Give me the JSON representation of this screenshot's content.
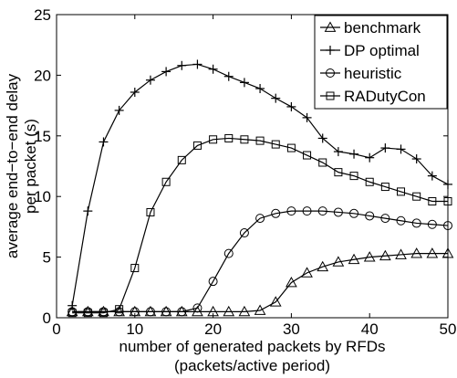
{
  "chart_data": {
    "type": "line",
    "xlabel": [
      "number of generated packets by RFDs",
      "(packets/active period)"
    ],
    "ylabel": [
      "average end−to−end delay",
      "per packet (s)"
    ],
    "xlim": [
      0,
      50
    ],
    "ylim": [
      0,
      25
    ],
    "xticks": [
      0,
      10,
      20,
      30,
      40,
      50
    ],
    "yticks": [
      0,
      5,
      10,
      15,
      20,
      25
    ],
    "grid": false,
    "legend_position": "top-right",
    "line_color": "#000000",
    "series": [
      {
        "name": "benchmark",
        "marker": "triangle",
        "x": [
          2,
          4,
          6,
          8,
          10,
          12,
          14,
          16,
          18,
          20,
          22,
          24,
          26,
          28,
          30,
          32,
          34,
          36,
          38,
          40,
          42,
          44,
          46,
          48,
          50
        ],
        "y": [
          0.5,
          0.5,
          0.5,
          0.5,
          0.5,
          0.5,
          0.5,
          0.5,
          0.5,
          0.5,
          0.5,
          0.5,
          0.6,
          1.3,
          2.9,
          3.7,
          4.2,
          4.6,
          4.8,
          5.0,
          5.1,
          5.2,
          5.3,
          5.3,
          5.3
        ]
      },
      {
        "name": "DP optimal",
        "marker": "plus",
        "x": [
          2,
          4,
          6,
          8,
          10,
          12,
          14,
          16,
          18,
          20,
          22,
          24,
          26,
          28,
          30,
          32,
          34,
          36,
          38,
          40,
          42,
          44,
          46,
          48,
          50
        ],
        "y": [
          1.0,
          8.8,
          14.5,
          17.1,
          18.6,
          19.6,
          20.3,
          20.8,
          20.9,
          20.5,
          19.9,
          19.4,
          18.9,
          18.1,
          17.4,
          16.5,
          14.8,
          13.7,
          13.5,
          13.2,
          14.0,
          13.9,
          13.1,
          11.7,
          11.0
        ]
      },
      {
        "name": "heuristic",
        "marker": "circle",
        "x": [
          2,
          4,
          6,
          8,
          10,
          12,
          14,
          16,
          18,
          20,
          22,
          24,
          26,
          28,
          30,
          32,
          34,
          36,
          38,
          40,
          42,
          44,
          46,
          48,
          50
        ],
        "y": [
          0.5,
          0.5,
          0.5,
          0.5,
          0.5,
          0.5,
          0.5,
          0.5,
          0.8,
          3.0,
          5.3,
          7.0,
          8.2,
          8.6,
          8.8,
          8.8,
          8.8,
          8.7,
          8.6,
          8.4,
          8.2,
          8.0,
          7.8,
          7.7,
          7.6
        ]
      },
      {
        "name": "RADutyCon",
        "marker": "square",
        "x": [
          2,
          4,
          6,
          8,
          10,
          12,
          14,
          16,
          18,
          20,
          22,
          24,
          26,
          28,
          30,
          32,
          34,
          36,
          38,
          40,
          42,
          44,
          46,
          48,
          50
        ],
        "y": [
          0.4,
          0.4,
          0.4,
          0.7,
          4.1,
          8.7,
          11.2,
          13.0,
          14.2,
          14.7,
          14.8,
          14.7,
          14.6,
          14.3,
          14.0,
          13.4,
          12.8,
          12.0,
          11.7,
          11.2,
          10.8,
          10.4,
          10.0,
          9.6,
          9.6
        ]
      }
    ]
  }
}
